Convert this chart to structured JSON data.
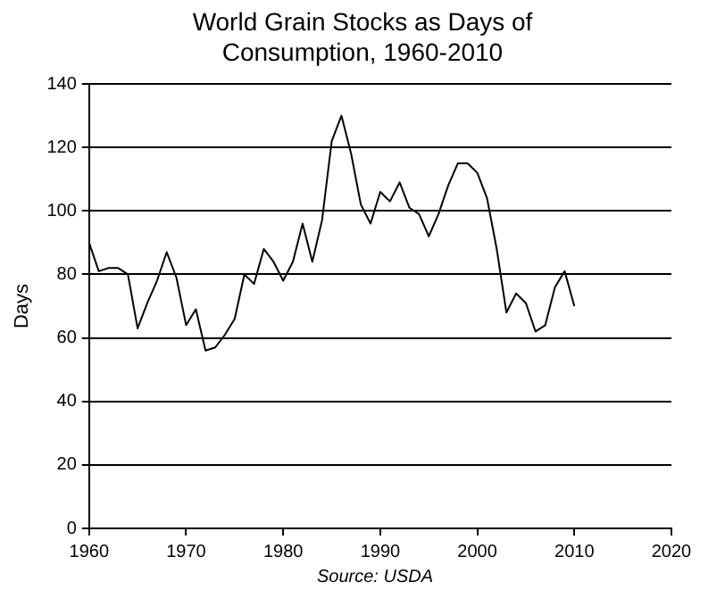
{
  "chart_data": {
    "type": "line",
    "title": "World Grain Stocks as Days of Consumption, 1960-2010",
    "ylabel": "Days",
    "x": [
      1960,
      1961,
      1962,
      1963,
      1964,
      1965,
      1966,
      1967,
      1968,
      1969,
      1970,
      1971,
      1972,
      1973,
      1974,
      1975,
      1976,
      1977,
      1978,
      1979,
      1980,
      1981,
      1982,
      1983,
      1984,
      1985,
      1986,
      1987,
      1988,
      1989,
      1990,
      1991,
      1992,
      1993,
      1994,
      1995,
      1996,
      1997,
      1998,
      1999,
      2000,
      2001,
      2002,
      2003,
      2004,
      2005,
      2006,
      2007,
      2008,
      2009,
      2010
    ],
    "series": [
      {
        "color": "#000000",
        "values": [
          90,
          81,
          82,
          82,
          80,
          63,
          71,
          78,
          87,
          79,
          64,
          69,
          56,
          57,
          61,
          66,
          80,
          77,
          88,
          84,
          78,
          84,
          96,
          84,
          97,
          122,
          130,
          118,
          102,
          96,
          106,
          103,
          109,
          101,
          99,
          92,
          99,
          108,
          115,
          115,
          112,
          104,
          88,
          68,
          74,
          71,
          62,
          64,
          76,
          81,
          70
        ]
      }
    ],
    "xlim": [
      1960,
      2020
    ],
    "xticks": [
      1960,
      1970,
      1980,
      1990,
      2000,
      2010,
      2020
    ],
    "ylim": [
      0,
      140
    ],
    "yticks": [
      0,
      20,
      40,
      60,
      80,
      100,
      120,
      140
    ],
    "grid": "y",
    "legend": false,
    "marker": "none",
    "line_style": "solid",
    "annotations": [
      "Source: USDA"
    ]
  }
}
